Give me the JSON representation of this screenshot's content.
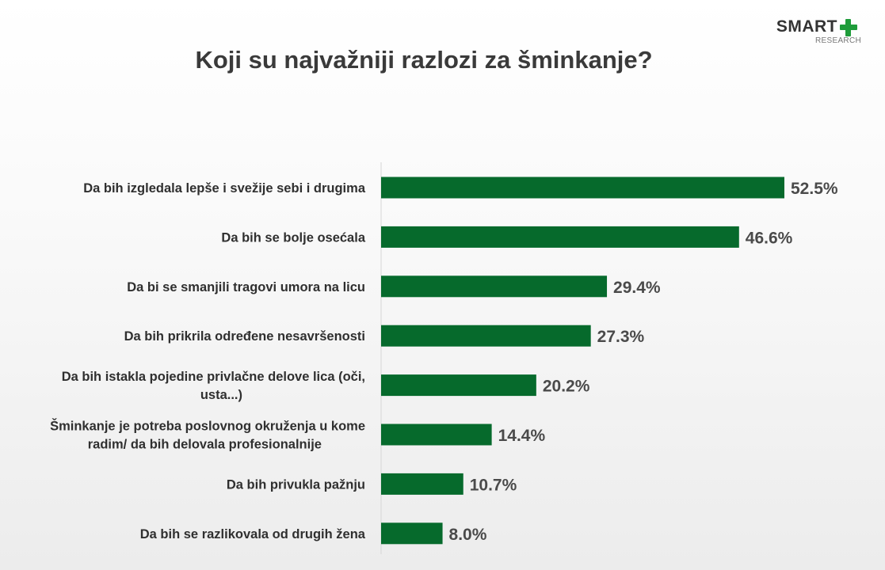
{
  "header": {
    "title": "Koji su najvažniji razlozi za šminkanje?",
    "brand": "SMART",
    "brand_sub": "RESEARCH",
    "brand_color": "#1e9c3a"
  },
  "chart_data": {
    "type": "bar",
    "orientation": "horizontal",
    "title": "Koji su najvažniji razlozi za šminkanje?",
    "xlabel": "",
    "ylabel": "",
    "unit": "%",
    "categories": [
      [
        "Da bih izgledala lepše i svežije sebi i drugima"
      ],
      [
        "Da bih se bolje osećala"
      ],
      [
        "Da bi se smanjili tragovi umora na licu"
      ],
      [
        "Da bih prikrila određene nesavršenosti"
      ],
      [
        "Da bih istakla pojedine privlačne delove lica (oči,",
        "usta...)"
      ],
      [
        "Šminkanje je potreba poslovnog okruženja u kome",
        "radim/ da bih delovala profesionalnije"
      ],
      [
        "Da bih privukla pažnju"
      ],
      [
        "Da bih se razlikovala od drugih žena"
      ]
    ],
    "values": [
      52.5,
      46.6,
      29.4,
      27.3,
      20.2,
      14.4,
      10.7,
      8.0
    ],
    "value_labels": [
      "52.5%",
      "46.6%",
      "29.4%",
      "27.3%",
      "20.2%",
      "14.4%",
      "10.7%",
      "8.0%"
    ],
    "xlim": [
      0,
      52.5
    ],
    "grid": false,
    "legend": "none",
    "bar_color": "#066a2c"
  }
}
